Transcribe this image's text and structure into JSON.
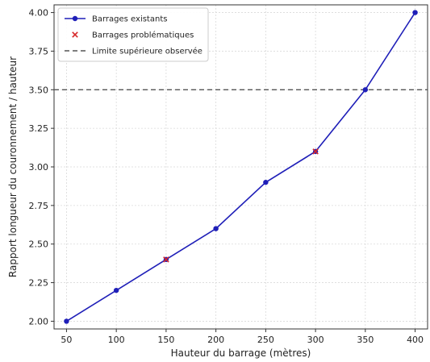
{
  "chart_data": {
    "type": "line",
    "title": "",
    "xlabel": "Hauteur du barrage (mètres)",
    "ylabel": "Rapport longueur du couronnement / hauteur",
    "xlim": [
      37.5,
      412.5
    ],
    "ylim": [
      1.95,
      4.05
    ],
    "x_ticks": [
      50,
      100,
      150,
      200,
      250,
      300,
      350,
      400
    ],
    "y_ticks": [
      2.0,
      2.25,
      2.5,
      2.75,
      3.0,
      3.25,
      3.5,
      3.75,
      4.0
    ],
    "grid": true,
    "legend_position": "top-left",
    "series": [
      {
        "name": "Barrages existants",
        "kind": "line-marker",
        "color": "#1f1fb8",
        "x": [
          50,
          100,
          150,
          200,
          250,
          300,
          350,
          400
        ],
        "y": [
          2.0,
          2.2,
          2.4,
          2.6,
          2.9,
          3.1,
          3.5,
          4.0
        ]
      },
      {
        "name": "Barrages problématiques",
        "kind": "x-marker",
        "color": "#d62728",
        "x": [
          150,
          300
        ],
        "y": [
          2.4,
          3.1
        ]
      }
    ],
    "hlines": [
      {
        "name": "Limite supérieure observée",
        "y": 3.5,
        "color": "#555555",
        "style": "dashed"
      }
    ]
  }
}
